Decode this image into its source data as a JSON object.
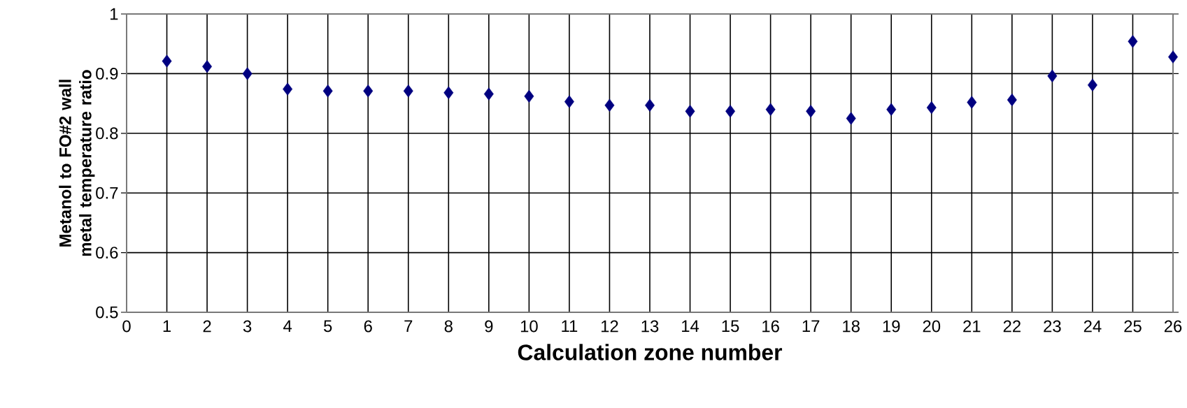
{
  "chart_data": {
    "type": "scatter",
    "xlabel": "Calculation zone number",
    "ylabel": "Metanol to FO#2 wall metal temperature ratio",
    "x": [
      1,
      2,
      3,
      4,
      5,
      6,
      7,
      8,
      9,
      10,
      11,
      12,
      13,
      14,
      15,
      16,
      17,
      18,
      19,
      20,
      21,
      22,
      23,
      24,
      25,
      26
    ],
    "series": [
      {
        "color": "#000080",
        "values": [
          0.921,
          0.912,
          0.9,
          0.874,
          0.871,
          0.871,
          0.871,
          0.868,
          0.866,
          0.862,
          0.853,
          0.847,
          0.847,
          0.837,
          0.837,
          0.84,
          0.837,
          0.825,
          0.84,
          0.843,
          0.852,
          0.856,
          0.896,
          0.881,
          0.954,
          0.928
        ]
      }
    ],
    "xlim": [
      0,
      26
    ],
    "xticks": [
      0,
      1,
      2,
      3,
      4,
      5,
      6,
      7,
      8,
      9,
      10,
      11,
      12,
      13,
      14,
      15,
      16,
      17,
      18,
      19,
      20,
      21,
      22,
      23,
      24,
      25,
      26
    ],
    "ylim": [
      0.5,
      1
    ],
    "yticks": [
      0.5,
      0.6,
      0.7,
      0.8,
      0.9,
      1
    ],
    "grid": true,
    "marker": "diamond"
  }
}
